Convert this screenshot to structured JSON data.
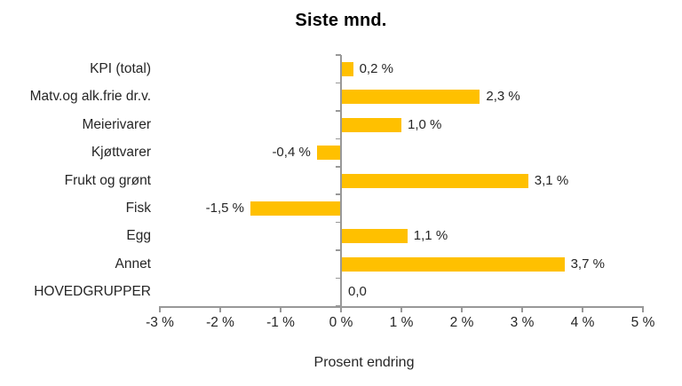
{
  "title": "Siste mnd.",
  "chart_data": {
    "type": "bar",
    "orientation": "horizontal",
    "title": "Siste mnd.",
    "xlabel": "Prosent endring",
    "categories": [
      "KPI (total)",
      "Matv.og alk.frie dr.v.",
      "Meierivarer",
      "Kjøttvarer",
      "Frukt og grønt",
      "Fisk",
      "Egg",
      "Annet",
      "HOVEDGRUPPER"
    ],
    "values": [
      0.2,
      2.3,
      1.0,
      -0.4,
      3.1,
      -1.5,
      1.1,
      3.7,
      0.0
    ],
    "value_labels": [
      "0,2 %",
      "2,3 %",
      "1,0 %",
      "-0,4 %",
      "3,1 %",
      "-1,5 %",
      "1,1 %",
      "3,7 %",
      "0,0"
    ],
    "xlim": [
      -3,
      5
    ],
    "x_ticks": [
      -3,
      -2,
      -1,
      0,
      1,
      2,
      3,
      4,
      5
    ],
    "x_tick_labels": [
      "-3 %",
      "-2 %",
      "-1 %",
      "0 %",
      "1 %",
      "2 %",
      "3 %",
      "4 %",
      "5 %"
    ],
    "grid": false,
    "legend": false,
    "colors": {
      "bar": "#FFC000",
      "axis": "#989898",
      "text": "#262626",
      "title": "#000000"
    }
  }
}
